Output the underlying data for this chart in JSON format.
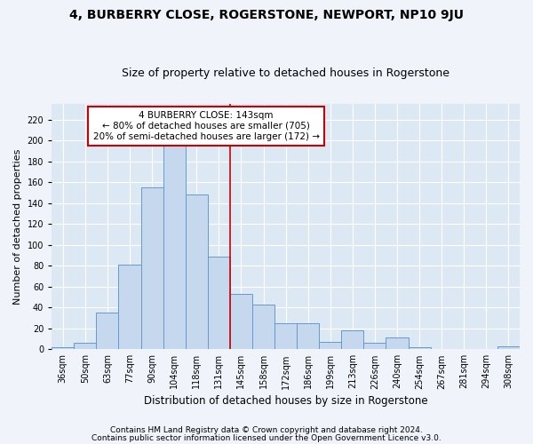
{
  "title": "4, BURBERRY CLOSE, ROGERSTONE, NEWPORT, NP10 9JU",
  "subtitle": "Size of property relative to detached houses in Rogerstone",
  "xlabel": "Distribution of detached houses by size in Rogerstone",
  "ylabel": "Number of detached properties",
  "categories": [
    "36sqm",
    "50sqm",
    "63sqm",
    "77sqm",
    "90sqm",
    "104sqm",
    "118sqm",
    "131sqm",
    "145sqm",
    "158sqm",
    "172sqm",
    "186sqm",
    "199sqm",
    "213sqm",
    "226sqm",
    "240sqm",
    "254sqm",
    "267sqm",
    "281sqm",
    "294sqm",
    "308sqm"
  ],
  "values": [
    2,
    6,
    35,
    81,
    155,
    202,
    148,
    89,
    53,
    43,
    25,
    25,
    7,
    18,
    6,
    11,
    2,
    0,
    0,
    0,
    3
  ],
  "bar_color": "#c5d8ee",
  "bar_edge_color": "#6699cc",
  "bg_color": "#dde8f5",
  "grid_color": "#ffffff",
  "vline_color": "#cc0000",
  "vline_pos": 7.5,
  "annotation_text": "4 BURBERRY CLOSE: 143sqm\n← 80% of detached houses are smaller (705)\n20% of semi-detached houses are larger (172) →",
  "annotation_box_color": "#ffffff",
  "annotation_box_edge": "#cc0000",
  "footnote1": "Contains HM Land Registry data © Crown copyright and database right 2024.",
  "footnote2": "Contains public sector information licensed under the Open Government Licence v3.0.",
  "ylim": [
    0,
    235
  ],
  "yticks": [
    0,
    20,
    40,
    60,
    80,
    100,
    120,
    140,
    160,
    180,
    200,
    220
  ],
  "title_fontsize": 10,
  "subtitle_fontsize": 9,
  "xlabel_fontsize": 8.5,
  "ylabel_fontsize": 8,
  "tick_fontsize": 7,
  "annotation_fontsize": 7.5,
  "footnote_fontsize": 6.5
}
